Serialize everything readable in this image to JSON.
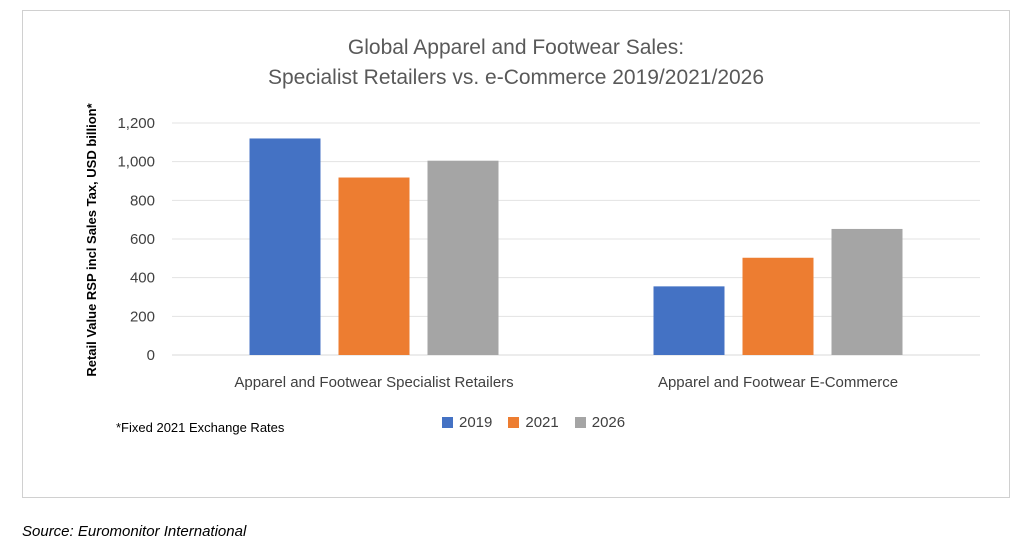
{
  "chart_data": {
    "type": "bar",
    "title_lines": [
      "Global Apparel and Footwear Sales:",
      "Specialist Retailers vs. e-Commerce 2019/2021/2026"
    ],
    "xlabel": "",
    "ylabel": "Retail Value RSP incl Sales Tax, USD billion*",
    "ylim": [
      0,
      1200
    ],
    "yticks": [
      0,
      200,
      400,
      600,
      800,
      1000,
      1200
    ],
    "ytick_labels": [
      "0",
      "200",
      "400",
      "600",
      "800",
      "1,000",
      "1,200"
    ],
    "categories": [
      "Apparel and Footwear Specialist Retailers",
      "Apparel and Footwear E-Commerce"
    ],
    "series": [
      {
        "name": "2019",
        "color": "#4472C4",
        "values": [
          1120,
          355
        ]
      },
      {
        "name": "2021",
        "color": "#ED7D31",
        "values": [
          918,
          503
        ]
      },
      {
        "name": "2026",
        "color": "#A5A5A5",
        "values": [
          1005,
          652
        ]
      }
    ],
    "grid": true,
    "legend_position": "bottom",
    "footnote": "*Fixed 2021 Exchange Rates"
  },
  "source": "Source: Euromonitor International"
}
